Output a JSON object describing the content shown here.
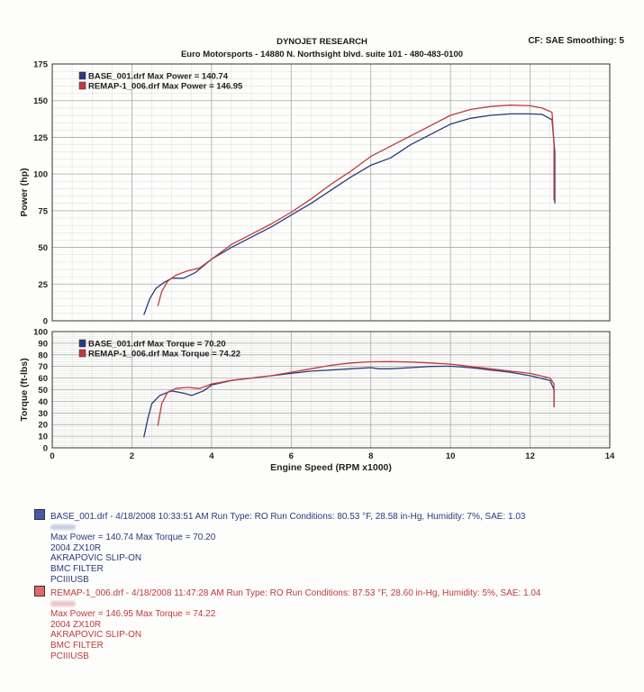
{
  "header": {
    "company": "DYNOJET RESEARCH",
    "address": "Euro Motorsports - 14880 N. Northsight blvd. suite 101  -  480-483-0100",
    "settings": "CF: SAE  Smoothing: 5"
  },
  "colors": {
    "base": "#2b3a7c",
    "remap": "#c0393d"
  },
  "chart_data": [
    {
      "type": "line",
      "ylabel": "Power (hp)",
      "xlim": [
        0,
        14
      ],
      "ylim": [
        0,
        175
      ],
      "yticks": [
        0,
        25,
        50,
        75,
        100,
        125,
        150,
        175
      ],
      "grid": true,
      "legend_position": "top-left",
      "series": [
        {
          "name": "BASE_001.drf Max Power = 140.74",
          "x": [
            2.3,
            2.45,
            2.6,
            2.8,
            3.0,
            3.3,
            3.6,
            4.0,
            4.5,
            5.0,
            5.5,
            6.0,
            6.5,
            7.0,
            7.5,
            8.0,
            8.5,
            9.0,
            9.5,
            10.0,
            10.5,
            11.0,
            11.5,
            12.0,
            12.3,
            12.55,
            12.62,
            12.62
          ],
          "y": [
            4,
            15,
            22,
            26,
            29,
            29,
            33,
            42,
            50,
            57,
            64,
            72,
            80,
            89,
            98,
            106,
            111,
            120,
            127,
            134,
            138,
            140,
            141,
            141,
            140.7,
            137,
            115,
            80
          ]
        },
        {
          "name": "REMAP-1_006.drf Max Power = 146.95",
          "x": [
            2.65,
            2.75,
            2.9,
            3.1,
            3.4,
            3.7,
            4.0,
            4.5,
            5.0,
            5.5,
            6.0,
            6.5,
            7.0,
            7.5,
            8.0,
            8.5,
            9.0,
            9.5,
            10.0,
            10.5,
            11.0,
            11.5,
            12.0,
            12.3,
            12.55,
            12.6,
            12.6
          ],
          "y": [
            10,
            20,
            27,
            31,
            34,
            36,
            42,
            52,
            59,
            66,
            74,
            83,
            93,
            102,
            112,
            119,
            126,
            133,
            140,
            144,
            146,
            146.95,
            146.5,
            145,
            142,
            120,
            82
          ]
        }
      ]
    },
    {
      "type": "line",
      "xlabel": "Engine Speed (RPM x1000)",
      "ylabel": "Torque (ft-lbs)",
      "xlim": [
        0,
        14
      ],
      "ylim": [
        0,
        100
      ],
      "xticks": [
        0,
        2,
        4,
        6,
        8,
        10,
        12,
        14
      ],
      "yticks": [
        0,
        10,
        20,
        30,
        40,
        50,
        60,
        70,
        80,
        90,
        100
      ],
      "grid": true,
      "legend_position": "top-left",
      "series": [
        {
          "name": "BASE_001.drf Max Torque = 70.20",
          "x": [
            2.3,
            2.4,
            2.5,
            2.7,
            3.0,
            3.3,
            3.5,
            3.8,
            4.0,
            4.5,
            5.0,
            5.5,
            6.0,
            6.5,
            7.0,
            7.5,
            8.0,
            8.2,
            8.5,
            9.0,
            9.5,
            10.0,
            10.5,
            11.0,
            11.5,
            12.0,
            12.5,
            12.6,
            12.6
          ],
          "y": [
            9,
            25,
            38,
            45,
            49,
            47,
            45,
            49,
            54,
            58,
            60,
            62,
            64,
            66,
            67,
            68,
            69,
            68,
            68,
            69,
            70,
            70.2,
            69,
            67,
            65,
            62,
            58,
            50,
            35
          ]
        },
        {
          "name": "REMAP-1_006.drf Max Torque = 74.22",
          "x": [
            2.65,
            2.75,
            2.9,
            3.1,
            3.4,
            3.7,
            4.0,
            4.5,
            5.0,
            5.5,
            6.0,
            6.5,
            7.0,
            7.5,
            8.0,
            8.5,
            9.0,
            9.5,
            10.0,
            10.5,
            11.0,
            11.5,
            12.0,
            12.5,
            12.6,
            12.6
          ],
          "y": [
            19,
            38,
            48,
            51,
            52,
            51,
            55,
            58,
            60,
            62,
            65,
            68,
            71,
            73,
            74,
            74.22,
            73.8,
            73,
            72,
            70,
            68,
            66,
            64,
            60,
            55,
            35
          ]
        }
      ]
    }
  ],
  "runs": [
    {
      "title": "BASE_001.drf - 4/18/2008 10:33:51 AM  Run Type: RO  Run Conditions: 80.53 °F, 28.58 in-Hg,  Humidity:  7%, SAE: 1.03",
      "max": "Max Power = 140.74  Max Torque = 70.20",
      "notes": [
        "2004 ZX10R",
        "AKRAPOVIC SLIP-ON",
        "BMC FILTER",
        "PCIIIUSB"
      ]
    },
    {
      "title": "REMAP-1_006.drf - 4/18/2008 11:47:28 AM  Run Type: RO  Run Conditions: 87.53 °F, 28.60 in-Hg,  Humidity:  5%, SAE: 1.04",
      "max": "Max Power = 146.95  Max Torque = 74.22",
      "notes": [
        "2004 ZX10R",
        "AKRAPOVIC SLIP-ON",
        "BMC FILTER",
        "PCIIIUSB"
      ]
    }
  ]
}
